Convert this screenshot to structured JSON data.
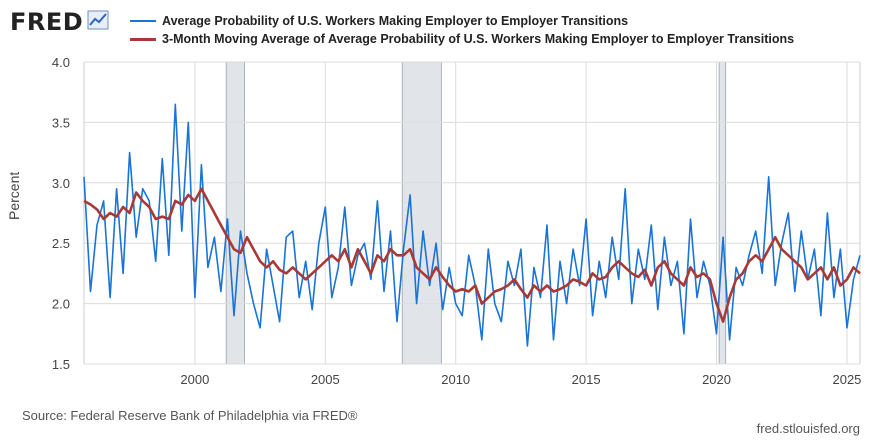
{
  "header": {
    "logo_text": "FRED",
    "logo_icon": "line-chart-icon"
  },
  "footer": {
    "source": "Source: Federal Reserve Bank of Philadelphia via FRED®",
    "url": "fred.stlouisfed.org"
  },
  "colors": {
    "series1": "#1a73d6",
    "series2": "#a83a36",
    "recession": "#e1e5ea",
    "grid": "#dcdcdc"
  },
  "chart_data": {
    "type": "line",
    "ylabel": "Percent",
    "ylim": [
      1.5,
      4.0
    ],
    "yticks": [
      "1.5",
      "2.0",
      "2.5",
      "3.0",
      "3.5",
      "4.0"
    ],
    "xlim": [
      1995.75,
      2025.5
    ],
    "xticks": [
      "2000",
      "2005",
      "2010",
      "2015",
      "2020",
      "2025"
    ],
    "grid": true,
    "legend_position": "top",
    "recessions": [
      [
        2001.2,
        2001.9
      ],
      [
        2007.95,
        2009.45
      ],
      [
        2020.1,
        2020.35
      ]
    ],
    "annual_means": {
      "x": [
        1996,
        1997,
        1998,
        1999,
        2000,
        2001,
        2002,
        2003,
        2004,
        2005,
        2006,
        2007,
        2008,
        2009,
        2010,
        2011,
        2012,
        2013,
        2014,
        2015,
        2016,
        2017,
        2018,
        2019,
        2020,
        2021,
        2022,
        2023,
        2024,
        2025
      ],
      "values": [
        2.8,
        2.75,
        2.88,
        2.7,
        2.85,
        2.7,
        2.45,
        2.28,
        2.3,
        2.38,
        2.4,
        2.42,
        2.4,
        2.2,
        2.12,
        2.08,
        2.12,
        2.1,
        2.15,
        2.22,
        2.3,
        2.25,
        2.22,
        2.2,
        2.0,
        2.25,
        2.38,
        2.38,
        2.25,
        2.25
      ]
    },
    "series": [
      {
        "name": "Average Probability of U.S. Workers Making Employer to Employer Transitions",
        "style": "thin-line",
        "color": "#1a73d6",
        "x": [
          1995.75,
          1996.0,
          1996.25,
          1996.5,
          1996.75,
          1997.0,
          1997.25,
          1997.5,
          1997.75,
          1998.0,
          1998.25,
          1998.5,
          1998.75,
          1999.0,
          1999.25,
          1999.5,
          1999.75,
          2000.0,
          2000.25,
          2000.5,
          2000.75,
          2001.0,
          2001.25,
          2001.5,
          2001.75,
          2002.0,
          2002.25,
          2002.5,
          2002.75,
          2003.0,
          2003.25,
          2003.5,
          2003.75,
          2004.0,
          2004.25,
          2004.5,
          2004.75,
          2005.0,
          2005.25,
          2005.5,
          2005.75,
          2006.0,
          2006.25,
          2006.5,
          2006.75,
          2007.0,
          2007.25,
          2007.5,
          2007.75,
          2008.0,
          2008.25,
          2008.5,
          2008.75,
          2009.0,
          2009.25,
          2009.5,
          2009.75,
          2010.0,
          2010.25,
          2010.5,
          2010.75,
          2011.0,
          2011.25,
          2011.5,
          2011.75,
          2012.0,
          2012.25,
          2012.5,
          2012.75,
          2013.0,
          2013.25,
          2013.5,
          2013.75,
          2014.0,
          2014.25,
          2014.5,
          2014.75,
          2015.0,
          2015.25,
          2015.5,
          2015.75,
          2016.0,
          2016.25,
          2016.5,
          2016.75,
          2017.0,
          2017.25,
          2017.5,
          2017.75,
          2018.0,
          2018.25,
          2018.5,
          2018.75,
          2019.0,
          2019.25,
          2019.5,
          2019.75,
          2020.0,
          2020.25,
          2020.5,
          2020.75,
          2021.0,
          2021.25,
          2021.5,
          2021.75,
          2022.0,
          2022.25,
          2022.5,
          2022.75,
          2023.0,
          2023.25,
          2023.5,
          2023.75,
          2024.0,
          2024.25,
          2024.5,
          2024.75,
          2025.0,
          2025.25,
          2025.5
        ],
        "values": [
          3.05,
          2.1,
          2.65,
          2.85,
          2.05,
          2.95,
          2.25,
          3.25,
          2.55,
          2.95,
          2.85,
          2.35,
          3.2,
          2.4,
          3.65,
          2.6,
          3.5,
          2.05,
          3.15,
          2.3,
          2.55,
          2.1,
          2.7,
          1.9,
          2.6,
          2.25,
          2.0,
          1.8,
          2.45,
          2.15,
          1.85,
          2.55,
          2.6,
          2.05,
          2.35,
          1.95,
          2.5,
          2.8,
          2.05,
          2.3,
          2.8,
          2.15,
          2.4,
          2.5,
          2.2,
          2.85,
          2.1,
          2.6,
          1.85,
          2.45,
          2.9,
          2.0,
          2.6,
          2.15,
          2.5,
          1.95,
          2.3,
          2.0,
          1.9,
          2.4,
          2.15,
          1.7,
          2.45,
          2.0,
          1.85,
          2.35,
          2.15,
          2.45,
          1.65,
          2.3,
          2.05,
          2.65,
          1.7,
          2.35,
          2.0,
          2.45,
          2.15,
          2.7,
          1.9,
          2.35,
          2.05,
          2.55,
          2.2,
          2.95,
          2.0,
          2.45,
          2.2,
          2.65,
          1.95,
          2.55,
          2.15,
          2.35,
          1.75,
          2.7,
          2.05,
          2.35,
          2.15,
          1.75,
          2.55,
          1.7,
          2.3,
          2.15,
          2.4,
          2.6,
          2.25,
          3.05,
          2.15,
          2.5,
          2.75,
          2.1,
          2.6,
          2.2,
          2.45,
          1.9,
          2.75,
          2.05,
          2.45,
          1.8,
          2.2,
          2.4
        ]
      },
      {
        "name": "3-Month Moving Average of Average Probability of U.S. Workers Making Employer to Employer Transitions",
        "style": "thick-line",
        "color": "#a83a36",
        "x": [
          1995.75,
          1996.0,
          1996.25,
          1996.5,
          1996.75,
          1997.0,
          1997.25,
          1997.5,
          1997.75,
          1998.0,
          1998.25,
          1998.5,
          1998.75,
          1999.0,
          1999.25,
          1999.5,
          1999.75,
          2000.0,
          2000.25,
          2000.5,
          2000.75,
          2001.0,
          2001.25,
          2001.5,
          2001.75,
          2002.0,
          2002.25,
          2002.5,
          2002.75,
          2003.0,
          2003.25,
          2003.5,
          2003.75,
          2004.0,
          2004.25,
          2004.5,
          2004.75,
          2005.0,
          2005.25,
          2005.5,
          2005.75,
          2006.0,
          2006.25,
          2006.5,
          2006.75,
          2007.0,
          2007.25,
          2007.5,
          2007.75,
          2008.0,
          2008.25,
          2008.5,
          2008.75,
          2009.0,
          2009.25,
          2009.5,
          2009.75,
          2010.0,
          2010.25,
          2010.5,
          2010.75,
          2011.0,
          2011.25,
          2011.5,
          2011.75,
          2012.0,
          2012.25,
          2012.5,
          2012.75,
          2013.0,
          2013.25,
          2013.5,
          2013.75,
          2014.0,
          2014.25,
          2014.5,
          2014.75,
          2015.0,
          2015.25,
          2015.5,
          2015.75,
          2016.0,
          2016.25,
          2016.5,
          2016.75,
          2017.0,
          2017.25,
          2017.5,
          2017.75,
          2018.0,
          2018.25,
          2018.5,
          2018.75,
          2019.0,
          2019.25,
          2019.5,
          2019.75,
          2020.0,
          2020.25,
          2020.5,
          2020.75,
          2021.0,
          2021.25,
          2021.5,
          2021.75,
          2022.0,
          2022.25,
          2022.5,
          2022.75,
          2023.0,
          2023.25,
          2023.5,
          2023.75,
          2024.0,
          2024.25,
          2024.5,
          2024.75,
          2025.0,
          2025.25,
          2025.5
        ],
        "values": [
          2.85,
          2.82,
          2.78,
          2.7,
          2.75,
          2.72,
          2.8,
          2.75,
          2.92,
          2.85,
          2.8,
          2.7,
          2.72,
          2.7,
          2.85,
          2.82,
          2.9,
          2.85,
          2.95,
          2.85,
          2.75,
          2.65,
          2.55,
          2.45,
          2.42,
          2.55,
          2.45,
          2.35,
          2.3,
          2.35,
          2.28,
          2.25,
          2.3,
          2.25,
          2.2,
          2.25,
          2.3,
          2.35,
          2.4,
          2.35,
          2.45,
          2.3,
          2.45,
          2.35,
          2.25,
          2.4,
          2.35,
          2.45,
          2.4,
          2.4,
          2.45,
          2.3,
          2.25,
          2.2,
          2.3,
          2.22,
          2.15,
          2.1,
          2.12,
          2.1,
          2.15,
          2.0,
          2.05,
          2.1,
          2.12,
          2.15,
          2.2,
          2.12,
          2.05,
          2.15,
          2.1,
          2.15,
          2.1,
          2.12,
          2.15,
          2.2,
          2.18,
          2.15,
          2.25,
          2.2,
          2.22,
          2.3,
          2.35,
          2.3,
          2.25,
          2.22,
          2.28,
          2.15,
          2.3,
          2.35,
          2.25,
          2.2,
          2.15,
          2.3,
          2.22,
          2.25,
          2.2,
          2.0,
          1.85,
          2.05,
          2.2,
          2.25,
          2.35,
          2.4,
          2.35,
          2.45,
          2.55,
          2.45,
          2.4,
          2.35,
          2.3,
          2.2,
          2.25,
          2.3,
          2.2,
          2.3,
          2.15,
          2.2,
          2.3,
          2.25
        ]
      }
    ]
  }
}
